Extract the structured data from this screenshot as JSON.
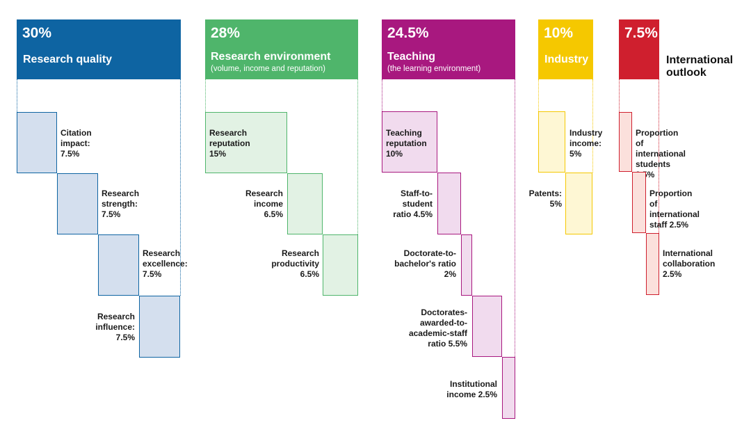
{
  "colors": {
    "research_quality": "#0e64a2",
    "research_environment": "#4fb56b",
    "teaching": "#a8187f",
    "industry": "#f5c800",
    "international": "#cf1f2e"
  },
  "pillars": [
    {
      "key": "research_quality",
      "percent": "30%",
      "name": "Research quality",
      "subtitle": "",
      "metrics": [
        {
          "label": "Citation\nimpact:\n7.5%",
          "value": 7.5
        },
        {
          "label": "Research\nstrength:\n7.5%",
          "value": 7.5
        },
        {
          "label": "Research\nexcellence:\n7.5%",
          "value": 7.5
        },
        {
          "label": "Research\ninfluence:\n7.5%",
          "value": 7.5
        }
      ]
    },
    {
      "key": "research_environment",
      "percent": "28%",
      "name": "Research environment",
      "subtitle": "(volume, income and reputation)",
      "metrics": [
        {
          "label": "Research\nreputation\n15%",
          "value": 15
        },
        {
          "label": "Research\nincome\n6.5%",
          "value": 6.5
        },
        {
          "label": "Research\nproductivity\n6.5%",
          "value": 6.5
        }
      ]
    },
    {
      "key": "teaching",
      "percent": "24.5%",
      "name": "Teaching",
      "subtitle": "(the learning environment)",
      "metrics": [
        {
          "label": "Teaching\nreputation\n10%",
          "value": 10
        },
        {
          "label": "Staff-to-\nstudent\nratio 4.5%",
          "value": 4.5
        },
        {
          "label": "Doctorate-to-\nbachelor's ratio\n2%",
          "value": 2
        },
        {
          "label": "Doctorates-\nawarded-to-\nacademic-staff\nratio 5.5%",
          "value": 5.5
        },
        {
          "label": "Institutional\nincome 2.5%",
          "value": 2.5
        }
      ]
    },
    {
      "key": "industry",
      "percent": "10%",
      "name": "Industry",
      "subtitle": "",
      "metrics": [
        {
          "label": "Industry\nincome:\n5%",
          "value": 5
        },
        {
          "label": "Patents:\n5%",
          "value": 5
        }
      ]
    },
    {
      "key": "international",
      "percent": "7.5%",
      "name": "International\noutlook",
      "subtitle": "",
      "metrics": [
        {
          "label": "Proportion of\ninternational\nstudents 2.5%",
          "value": 2.5
        },
        {
          "label": "Proportion of\ninternational\nstaff 2.5%",
          "value": 2.5
        },
        {
          "label": "International\ncollaboration\n2.5%",
          "value": 2.5
        }
      ]
    }
  ]
}
